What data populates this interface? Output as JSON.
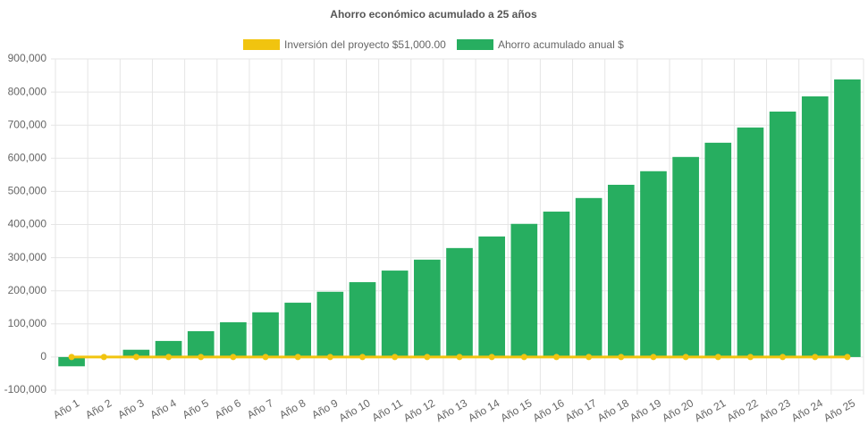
{
  "chart_data": {
    "type": "bar",
    "title": "Ahorro económico acumulado a 25 años",
    "categories": [
      "Año 1",
      "Año 2",
      "Año 3",
      "Año 4",
      "Año 5",
      "Año 6",
      "Año 7",
      "Año 8",
      "Año 9",
      "Año 10",
      "Año 11",
      "Año 12",
      "Año 13",
      "Año 14",
      "Año 15",
      "Año 16",
      "Año 17",
      "Año 18",
      "Año 19",
      "Año 20",
      "Año 21",
      "Año 22",
      "Año 23",
      "Año 24",
      "Año 25"
    ],
    "series": [
      {
        "name": "Inversión del proyecto $51,000.00",
        "type": "line",
        "color": "#f1c40f",
        "values": [
          0,
          0,
          0,
          0,
          0,
          0,
          0,
          0,
          0,
          0,
          0,
          0,
          0,
          0,
          0,
          0,
          0,
          0,
          0,
          0,
          0,
          0,
          0,
          0,
          0
        ]
      },
      {
        "name": "Ahorro acumulado anual $",
        "type": "bar",
        "color": "#27ae60",
        "values": [
          -28000,
          0,
          22000,
          48500,
          78000,
          105000,
          135000,
          164000,
          197000,
          226000,
          261000,
          294000,
          329000,
          364000,
          402000,
          439000,
          480000,
          520000,
          561000,
          604000,
          647000,
          693000,
          741000,
          787000,
          838000
        ]
      }
    ],
    "ylim": [
      -100000,
      900000
    ],
    "yticks": [
      {
        "value": -100000,
        "label": "-100,000"
      },
      0,
      {
        "value": 100000,
        "label": "100,000"
      },
      {
        "value": 200000,
        "label": "200,000"
      },
      {
        "value": 300000,
        "label": "300,000"
      },
      {
        "value": 400000,
        "label": "400,000"
      },
      {
        "value": 500000,
        "label": "500,000"
      },
      {
        "value": 600000,
        "label": "600,000"
      },
      {
        "value": 700000,
        "label": "700,000"
      },
      {
        "value": 800000,
        "label": "800,000"
      },
      {
        "value": 900000,
        "label": "900,000"
      }
    ],
    "grid": true
  }
}
